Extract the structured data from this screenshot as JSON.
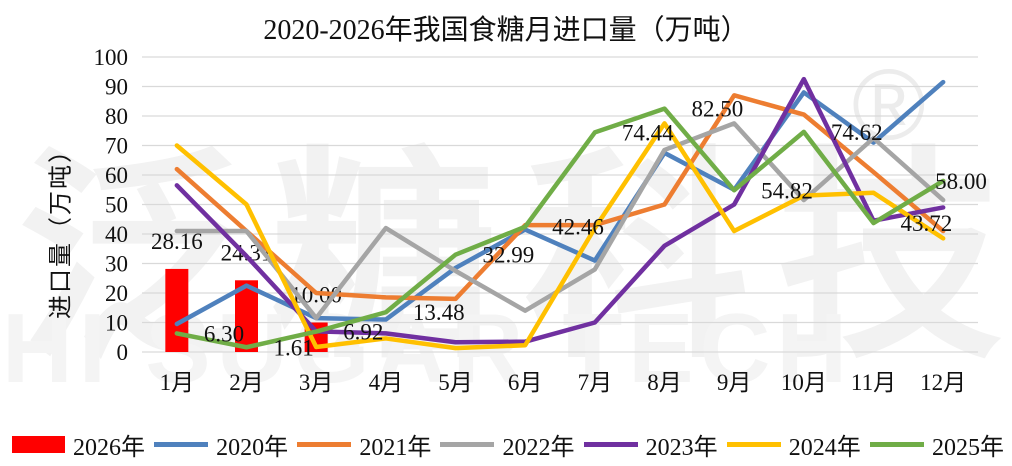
{
  "watermark": {
    "cn": "泛糖科技",
    "en": "HI SUGAR TECH",
    "reg": "®"
  },
  "chart_data": {
    "type": "mixed",
    "title": "2020-2026年我国食糖月进口量（万吨）",
    "ylabel": "进口量（万吨）",
    "categories": [
      "1月",
      "2月",
      "3月",
      "4月",
      "5月",
      "6月",
      "7月",
      "8月",
      "9月",
      "10月",
      "11月",
      "12月"
    ],
    "ylim": [
      0,
      100
    ],
    "ytick_step": 10,
    "grid_on": true,
    "grid_color": "#d9d9d9",
    "legend_position": "bottom",
    "series": [
      {
        "name": "2026年",
        "type": "bar",
        "color": "#ff0000",
        "values": [
          28.16,
          24.31,
          10.0,
          null,
          null,
          null,
          null,
          null,
          null,
          null,
          null,
          null
        ],
        "labels": [
          "28.16",
          "24.31",
          "10.00",
          null,
          null,
          null,
          null,
          null,
          null,
          null,
          null,
          null
        ]
      },
      {
        "name": "2020年",
        "type": "line",
        "color": "#4f81bd",
        "values": [
          9.5,
          22.5,
          11.5,
          11,
          28.5,
          41.5,
          31,
          67.5,
          55,
          88,
          71,
          91.5
        ]
      },
      {
        "name": "2021年",
        "type": "line",
        "color": "#ed7d31",
        "values": [
          62,
          41,
          20,
          18.5,
          18,
          43,
          43,
          50,
          87,
          80.5,
          61,
          41
        ]
      },
      {
        "name": "2022年",
        "type": "line",
        "color": "#a5a5a5",
        "values": [
          41,
          41,
          11.5,
          42,
          27.5,
          14,
          28,
          68.5,
          77.5,
          51.5,
          72.5,
          51.5
        ]
      },
      {
        "name": "2023年",
        "type": "line",
        "color": "#7030a0",
        "values": [
          56.5,
          32.5,
          7,
          6.3,
          3.3,
          3.5,
          10,
          36,
          50,
          92.5,
          44.5,
          49
        ]
      },
      {
        "name": "2024年",
        "type": "line",
        "color": "#ffc000",
        "values": [
          70,
          50,
          1.7,
          4.6,
          1.3,
          2.3,
          42,
          77.5,
          41,
          53,
          54,
          38.5
        ]
      },
      {
        "name": "2025年",
        "type": "line",
        "color": "#70ad47",
        "values": [
          6.3,
          1.61,
          6.92,
          13.48,
          32.99,
          42.46,
          74.44,
          82.5,
          54.82,
          74.62,
          43.72,
          58.0
        ],
        "labels": [
          "6.30",
          "1.61",
          "6.92",
          "13.48",
          "32.99",
          "42.46",
          "74.44",
          "82.50",
          "54.82",
          "74.62",
          "43.72",
          "58.00"
        ]
      }
    ]
  }
}
